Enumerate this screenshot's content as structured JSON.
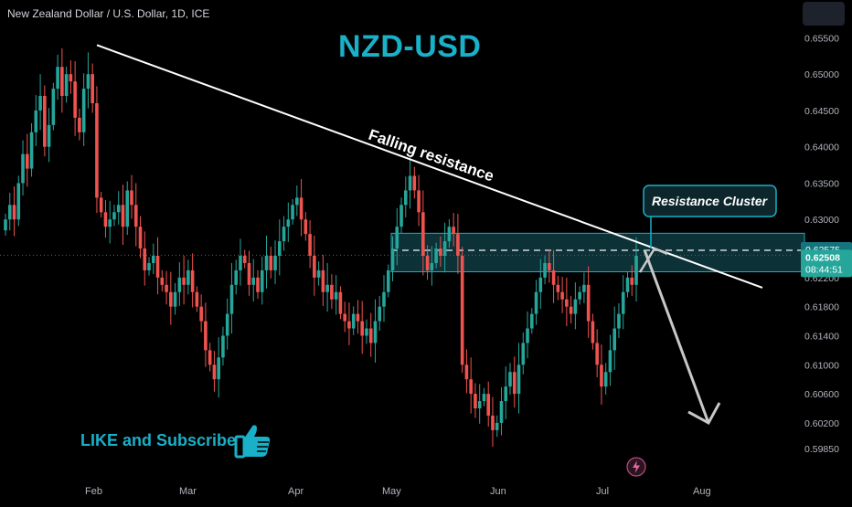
{
  "header": {
    "symbol": "New Zealand Dollar / U.S. Dollar, 1D, ICE",
    "title": "NZD-USD"
  },
  "cta": {
    "text": "LIKE and Subscribe"
  },
  "annotations": {
    "falling_resistance": "Falling resistance",
    "resistance_cluster": "Resistance Cluster"
  },
  "price_labels": {
    "level": "0.62575",
    "current": "0.62508",
    "countdown": "08:44:51"
  },
  "colors": {
    "up": "#26a69a",
    "down": "#ef5350",
    "accent": "#19b0c8",
    "zone": "#0e3a40",
    "background": "#000000"
  },
  "icons": {
    "thumb": "thumbs-up-icon",
    "bolt": "lightning-icon"
  },
  "chart_data": {
    "type": "candlestick",
    "yticks": [
      "0.65500",
      "0.65000",
      "0.64500",
      "0.64000",
      "0.63500",
      "0.63000",
      "0.62200",
      "0.61800",
      "0.61400",
      "0.61000",
      "0.60600",
      "0.60200",
      "0.59850"
    ],
    "xticks": [
      "Feb",
      "Mar",
      "Apr",
      "May",
      "Jun",
      "Jul",
      "Aug"
    ],
    "ylim": [
      0.5975,
      0.66
    ],
    "resistance_zone": [
      0.6228,
      0.6281
    ],
    "resistance_level": 0.62575,
    "current_price": 0.62508,
    "trendline": {
      "from": [
        "Feb",
        0.654
      ],
      "to": [
        "Aug+",
        0.6206
      ]
    },
    "projection": {
      "from": 0.6258,
      "to": 0.602
    },
    "closes": [
      0.63,
      0.632,
      0.63,
      0.635,
      0.639,
      0.637,
      0.642,
      0.645,
      0.647,
      0.64,
      0.643,
      0.648,
      0.651,
      0.647,
      0.65,
      0.649,
      0.644,
      0.642,
      0.648,
      0.65,
      0.646,
      0.633,
      0.631,
      0.629,
      0.63,
      0.631,
      0.632,
      0.629,
      0.634,
      0.632,
      0.629,
      0.626,
      0.623,
      0.624,
      0.625,
      0.622,
      0.621,
      0.62,
      0.618,
      0.62,
      0.622,
      0.621,
      0.623,
      0.62,
      0.618,
      0.616,
      0.612,
      0.61,
      0.608,
      0.611,
      0.614,
      0.617,
      0.621,
      0.623,
      0.625,
      0.624,
      0.621,
      0.622,
      0.62,
      0.623,
      0.625,
      0.623,
      0.625,
      0.627,
      0.629,
      0.63,
      0.632,
      0.633,
      0.63,
      0.628,
      0.625,
      0.622,
      0.623,
      0.62,
      0.621,
      0.619,
      0.62,
      0.617,
      0.616,
      0.615,
      0.617,
      0.616,
      0.614,
      0.615,
      0.613,
      0.616,
      0.618,
      0.62,
      0.623,
      0.626,
      0.629,
      0.632,
      0.634,
      0.636,
      0.634,
      0.631,
      0.625,
      0.623,
      0.624,
      0.626,
      0.625,
      0.627,
      0.629,
      0.628,
      0.625,
      0.61,
      0.608,
      0.606,
      0.604,
      0.605,
      0.606,
      0.603,
      0.601,
      0.602,
      0.605,
      0.607,
      0.609,
      0.606,
      0.61,
      0.613,
      0.615,
      0.617,
      0.62,
      0.622,
      0.624,
      0.623,
      0.621,
      0.62,
      0.619,
      0.618,
      0.617,
      0.619,
      0.62,
      0.621,
      0.616,
      0.613,
      0.61,
      0.607,
      0.609,
      0.612,
      0.615,
      0.617,
      0.62,
      0.622,
      0.621,
      0.625
    ]
  }
}
